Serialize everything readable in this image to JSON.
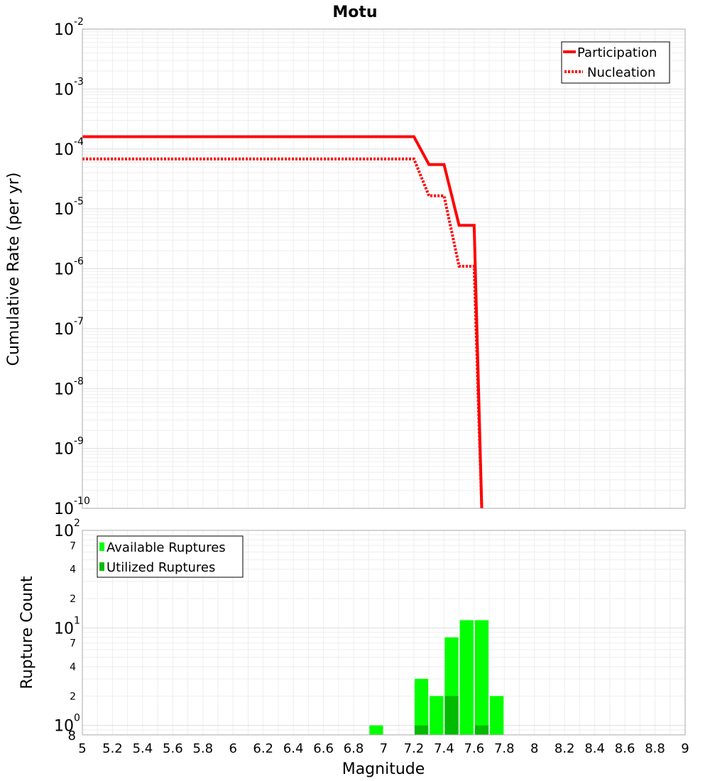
{
  "chart_data": [
    {
      "type": "line",
      "title": "Motu",
      "xlabel": "Magnitude",
      "ylabel": "Cumulative Rate (per yr)",
      "yscale": "log",
      "xlim": [
        5,
        9
      ],
      "ylim": [
        1e-10,
        0.01
      ],
      "y_ticks": [
        {
          "base": "10",
          "exp": "-10",
          "value": 1e-10
        },
        {
          "base": "10",
          "exp": "-9",
          "value": 1e-09
        },
        {
          "base": "10",
          "exp": "-8",
          "value": 1e-08
        },
        {
          "base": "10",
          "exp": "-7",
          "value": 1e-07
        },
        {
          "base": "10",
          "exp": "-6",
          "value": 1e-06
        },
        {
          "base": "10",
          "exp": "-5",
          "value": 1e-05
        },
        {
          "base": "10",
          "exp": "-4",
          "value": 0.0001
        },
        {
          "base": "10",
          "exp": "-3",
          "value": 0.001
        },
        {
          "base": "10",
          "exp": "-2",
          "value": 0.01
        }
      ],
      "series": [
        {
          "name": "Participation",
          "style": "solid",
          "color": "#ff0000",
          "x": [
            5.0,
            7.2,
            7.3,
            7.4,
            7.5,
            7.6,
            7.65
          ],
          "y": [
            0.00016,
            0.00016,
            5.5e-05,
            5.5e-05,
            5.3e-06,
            5.3e-06,
            1e-10
          ]
        },
        {
          "name": "Nucleation",
          "style": "dotted",
          "color": "#ff0000",
          "x": [
            5.0,
            7.2,
            7.3,
            7.4,
            7.5,
            7.6,
            7.65
          ],
          "y": [
            6.8e-05,
            6.8e-05,
            1.65e-05,
            1.65e-05,
            1.1e-06,
            1.1e-06,
            1e-10
          ]
        }
      ]
    },
    {
      "type": "bar",
      "xlabel": "Magnitude",
      "ylabel": "Rupture Count",
      "yscale": "log",
      "xlim": [
        5,
        9
      ],
      "ylim": [
        0.8,
        100
      ],
      "x_ticks": [
        "5",
        "5.2",
        "5.4",
        "5.6",
        "5.8",
        "6",
        "6.2",
        "6.4",
        "6.6",
        "6.8",
        "7",
        "7.2",
        "7.4",
        "7.6",
        "7.8",
        "8",
        "8.2",
        "8.4",
        "8.6",
        "8.8",
        "9"
      ],
      "y_major_ticks": [
        {
          "base": "10",
          "exp": "0",
          "value": 1
        },
        {
          "base": "10",
          "exp": "1",
          "value": 10
        },
        {
          "base": "10",
          "exp": "2",
          "value": 100
        }
      ],
      "y_minor_ticks": [
        {
          "label": "8",
          "value": 0.8
        },
        {
          "label": "2",
          "value": 2
        },
        {
          "label": "4",
          "value": 4
        },
        {
          "label": "7",
          "value": 7
        },
        {
          "label": "2",
          "value": 20
        },
        {
          "label": "4",
          "value": 40
        },
        {
          "label": "7",
          "value": 70
        }
      ],
      "bin_width": 0.1,
      "series": [
        {
          "name": "Available Ruptures",
          "color": "#00ff00",
          "x": [
            6.95,
            7.25,
            7.35,
            7.45,
            7.55,
            7.65,
            7.75
          ],
          "values": [
            1,
            3,
            2,
            8,
            12,
            12,
            2
          ]
        },
        {
          "name": "Utilized Ruptures",
          "color": "#00bb00",
          "x": [
            7.25,
            7.45,
            7.65
          ],
          "values": [
            1,
            2,
            1
          ]
        }
      ]
    }
  ]
}
